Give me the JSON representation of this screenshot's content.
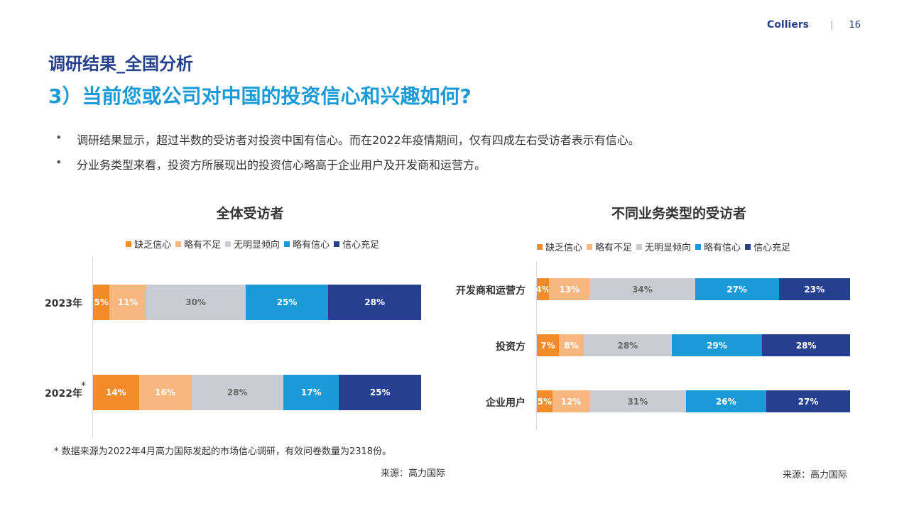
{
  "header": {
    "brand": "Colliers",
    "page_number": "16"
  },
  "title_small": "调研结果_全国分析",
  "title_main": "3）当前您或公司对中国的投资信心和兴趣如何?",
  "bullets": [
    "调研结果显示，超过半数的受访者对投资中国有信心。而在2022年疫情期间，仅有四成左右受访者表示有信心。",
    "分业务类型来看，投资方所展现出的投资信心略高于企业用户及开发商和运营方。"
  ],
  "colors": {
    "缺乏信心": "#f28c28",
    "略有不足": "#f7b880",
    "无明显倾向": "#cbcbd4",
    "略有信心": "#1a9ad6",
    "信心充足": "#25408f"
  },
  "chart_data": [
    {
      "type": "bar",
      "orientation": "horizontal-stacked-100",
      "title": "全体受访者",
      "legend": [
        "缺乏信心",
        "略有不足",
        "无明显倾向",
        "略有信心",
        "信心充足"
      ],
      "categories": [
        "2023年",
        "2022年"
      ],
      "category_marks": [
        "",
        "*"
      ],
      "series": [
        {
          "name": "缺乏信心",
          "values": [
            5,
            14
          ]
        },
        {
          "name": "略有不足",
          "values": [
            11,
            16
          ]
        },
        {
          "name": "无明显倾向",
          "values": [
            30,
            28
          ]
        },
        {
          "name": "略有信心",
          "values": [
            25,
            17
          ]
        },
        {
          "name": "信心充足",
          "values": [
            28,
            25
          ]
        }
      ],
      "labels": [
        [
          "5%",
          "11%",
          "30%",
          "25%",
          "28%"
        ],
        [
          "14%",
          "16%",
          "28%",
          "17%",
          "25%"
        ]
      ]
    },
    {
      "type": "bar",
      "orientation": "horizontal-stacked-100",
      "title": "不同业务类型的受访者",
      "legend": [
        "缺乏信心",
        "略有不足",
        "无明显倾向",
        "略有信心",
        "信心充足"
      ],
      "categories": [
        "开发商和运营方",
        "投资方",
        "企业用户"
      ],
      "category_marks": [
        "",
        "",
        ""
      ],
      "series": [
        {
          "name": "缺乏信心",
          "values": [
            4,
            7,
            5
          ]
        },
        {
          "name": "略有不足",
          "values": [
            13,
            8,
            12
          ]
        },
        {
          "name": "无明显倾向",
          "values": [
            34,
            28,
            31
          ]
        },
        {
          "name": "略有信心",
          "values": [
            27,
            29,
            26
          ]
        },
        {
          "name": "信心充足",
          "values": [
            23,
            28,
            27
          ]
        }
      ],
      "labels": [
        [
          "4%",
          "13%",
          "34%",
          "27%",
          "23%"
        ],
        [
          "7%",
          "8%",
          "28%",
          "29%",
          "28%"
        ],
        [
          "5%",
          "12%",
          "31%",
          "26%",
          "27%"
        ]
      ]
    }
  ],
  "footnote": "* 数据来源为2022年4月高力国际发起的市场信心调研，有效问卷数量为2318份。",
  "source_left": "来源：高力国际",
  "source_right": "来源：高力国际"
}
